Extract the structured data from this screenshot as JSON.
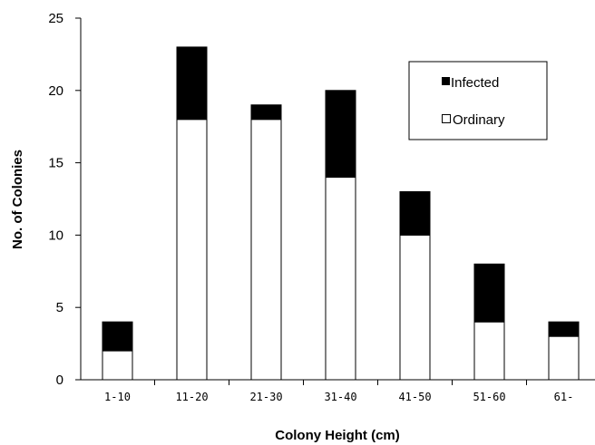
{
  "chart_data": {
    "type": "bar",
    "stacked": true,
    "categories": [
      "1-10",
      "11-20",
      "21-30",
      "31-40",
      "41-50",
      "51-60",
      "61-"
    ],
    "series": [
      {
        "name": "Ordinary",
        "values": [
          2,
          18,
          18,
          14,
          10,
          4,
          3
        ],
        "color": "#ffffff"
      },
      {
        "name": "Infected",
        "values": [
          2,
          5,
          1,
          6,
          3,
          4,
          1
        ],
        "color": "#000000"
      }
    ],
    "xlabel": "Colony Height (cm)",
    "ylabel": "No. of Colonies",
    "ylim": [
      0,
      25
    ],
    "yticks": [
      "0",
      "5",
      "10",
      "15",
      "20",
      "25"
    ],
    "grid": false,
    "legend": {
      "position": "top-right",
      "items": [
        {
          "label": "Infected",
          "marker": "■",
          "color": "#000000"
        },
        {
          "label": "Ordinary",
          "marker": "□",
          "color": "#ffffff"
        }
      ]
    }
  }
}
